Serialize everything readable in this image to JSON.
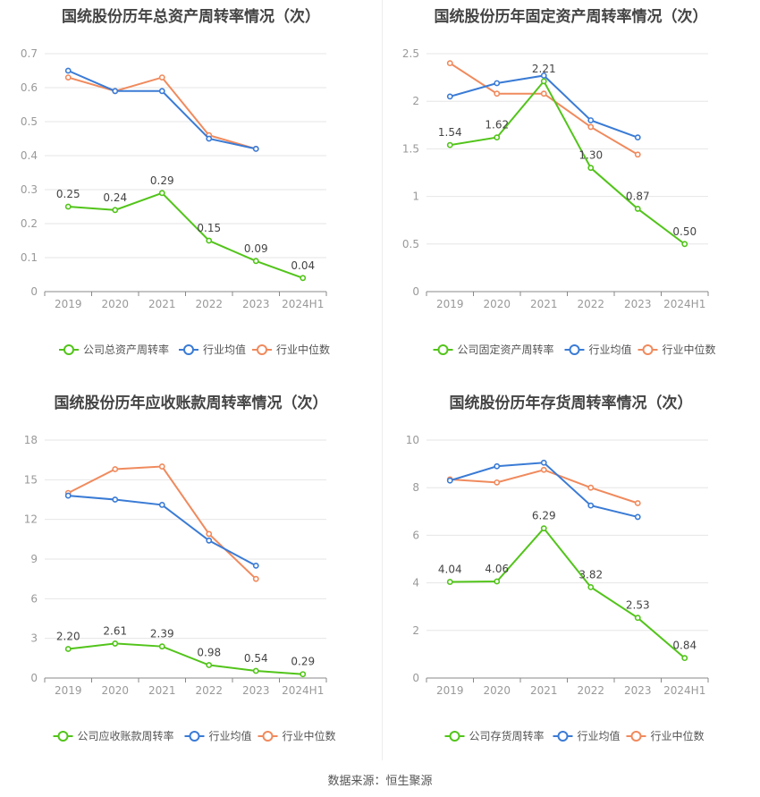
{
  "footer": "数据来源：恒生聚源",
  "colors": {
    "company": "#52c41a",
    "average": "#3a7bd5",
    "median": "#f08a5d",
    "grid": "#e6e6e6",
    "axis": "#999999",
    "text": "#444444"
  },
  "chart_data": [
    {
      "type": "line",
      "title": "国统股份历年总资产周转率情况（次）",
      "categories": [
        "2019",
        "2020",
        "2021",
        "2022",
        "2023",
        "2024H1"
      ],
      "ylim": [
        0,
        0.7
      ],
      "yticks": [
        "0",
        "0.1",
        "0.2",
        "0.3",
        "0.4",
        "0.5",
        "0.6",
        "0.7"
      ],
      "grid": true,
      "legend_position": "bottom",
      "series": [
        {
          "name": "公司总资产周转率",
          "key": "company",
          "values": [
            0.25,
            0.24,
            0.29,
            0.15,
            0.09,
            0.04
          ],
          "labels": [
            "0.25",
            "0.24",
            "0.29",
            "0.15",
            "0.09",
            "0.04"
          ]
        },
        {
          "name": "行业均值",
          "key": "average",
          "values": [
            0.65,
            0.59,
            0.59,
            0.45,
            0.42,
            null
          ]
        },
        {
          "name": "行业中位数",
          "key": "median",
          "values": [
            0.63,
            0.59,
            0.63,
            0.46,
            0.42,
            null
          ]
        }
      ]
    },
    {
      "type": "line",
      "title": "国统股份历年固定资产周转率情况（次）",
      "categories": [
        "2019",
        "2020",
        "2021",
        "2022",
        "2023",
        "2024H1"
      ],
      "ylim": [
        0,
        2.5
      ],
      "yticks": [
        "0",
        "0.5",
        "1",
        "1.5",
        "2",
        "2.5"
      ],
      "grid": true,
      "legend_position": "bottom",
      "series": [
        {
          "name": "公司固定资产周转率",
          "key": "company",
          "values": [
            1.54,
            1.62,
            2.21,
            1.3,
            0.87,
            0.5
          ],
          "labels": [
            "1.54",
            "1.62",
            "2.21",
            "1.30",
            "0.87",
            "0.50"
          ]
        },
        {
          "name": "行业均值",
          "key": "average",
          "values": [
            2.05,
            2.19,
            2.27,
            1.8,
            1.62,
            null
          ]
        },
        {
          "name": "行业中位数",
          "key": "median",
          "values": [
            2.4,
            2.08,
            2.08,
            1.73,
            1.44,
            null
          ]
        }
      ]
    },
    {
      "type": "line",
      "title": "国统股份历年应收账款周转率情况（次）",
      "categories": [
        "2019",
        "2020",
        "2021",
        "2022",
        "2023",
        "2024H1"
      ],
      "ylim": [
        0,
        18
      ],
      "yticks": [
        "0",
        "3",
        "6",
        "9",
        "12",
        "15",
        "18"
      ],
      "grid": true,
      "legend_position": "bottom",
      "series": [
        {
          "name": "公司应收账款周转率",
          "key": "company",
          "values": [
            2.2,
            2.61,
            2.39,
            0.98,
            0.54,
            0.29
          ],
          "labels": [
            "2.20",
            "2.61",
            "2.39",
            "0.98",
            "0.54",
            "0.29"
          ]
        },
        {
          "name": "行业均值",
          "key": "average",
          "values": [
            13.8,
            13.5,
            13.1,
            10.4,
            8.5,
            null
          ]
        },
        {
          "name": "行业中位数",
          "key": "median",
          "values": [
            14.0,
            15.8,
            16.0,
            10.9,
            7.5,
            null
          ]
        }
      ]
    },
    {
      "type": "line",
      "title": "国统股份历年存货周转率情况（次）",
      "categories": [
        "2019",
        "2020",
        "2021",
        "2022",
        "2023",
        "2024H1"
      ],
      "ylim": [
        0,
        10
      ],
      "yticks": [
        "0",
        "2",
        "4",
        "6",
        "8",
        "10"
      ],
      "grid": true,
      "legend_position": "bottom",
      "series": [
        {
          "name": "公司存货周转率",
          "key": "company",
          "values": [
            4.04,
            4.06,
            6.29,
            3.82,
            2.53,
            0.84
          ],
          "labels": [
            "4.04",
            "4.06",
            "6.29",
            "3.82",
            "2.53",
            "0.84"
          ]
        },
        {
          "name": "行业均值",
          "key": "average",
          "values": [
            8.3,
            8.9,
            9.05,
            7.25,
            6.77,
            null
          ]
        },
        {
          "name": "行业中位数",
          "key": "median",
          "values": [
            8.35,
            8.22,
            8.75,
            8.0,
            7.35,
            null
          ]
        }
      ]
    }
  ]
}
